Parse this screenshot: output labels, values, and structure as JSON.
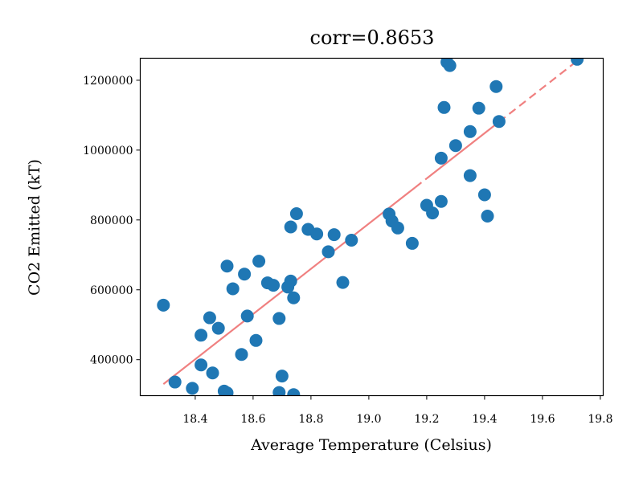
{
  "chart_data": {
    "type": "scatter",
    "title": "corr=0.8653",
    "xlabel": "Average Temperature (Celsius)",
    "ylabel": "CO2 Emitted (kT)",
    "xlim": [
      18.21,
      19.81
    ],
    "ylim": [
      297000,
      1263000
    ],
    "xticks": [
      18.4,
      18.6,
      18.8,
      19.0,
      19.2,
      19.4,
      19.6,
      19.8
    ],
    "xtick_labels": [
      "18.4",
      "18.6",
      "18.8",
      "19.0",
      "19.2",
      "19.4",
      "19.6",
      "19.8"
    ],
    "yticks": [
      400000,
      600000,
      800000,
      1000000,
      1200000
    ],
    "ytick_labels": [
      "400000",
      "600000",
      "800000",
      "1000000",
      "1200000"
    ],
    "grid": false,
    "marker_color": "#1f77b4",
    "trend_color": "#f08080",
    "trendline": {
      "x": [
        18.29,
        19.73
      ],
      "y": [
        330000,
        1262000
      ]
    },
    "points": [
      {
        "x": 18.29,
        "y": 556000
      },
      {
        "x": 18.33,
        "y": 336000
      },
      {
        "x": 18.39,
        "y": 318000
      },
      {
        "x": 18.42,
        "y": 470000
      },
      {
        "x": 18.42,
        "y": 385000
      },
      {
        "x": 18.45,
        "y": 520000
      },
      {
        "x": 18.46,
        "y": 362000
      },
      {
        "x": 18.48,
        "y": 490000
      },
      {
        "x": 18.5,
        "y": 310000
      },
      {
        "x": 18.51,
        "y": 305000
      },
      {
        "x": 18.51,
        "y": 668000
      },
      {
        "x": 18.53,
        "y": 603000
      },
      {
        "x": 18.56,
        "y": 415000
      },
      {
        "x": 18.57,
        "y": 645000
      },
      {
        "x": 18.58,
        "y": 525000
      },
      {
        "x": 18.61,
        "y": 455000
      },
      {
        "x": 18.62,
        "y": 682000
      },
      {
        "x": 18.65,
        "y": 620000
      },
      {
        "x": 18.67,
        "y": 613000
      },
      {
        "x": 18.69,
        "y": 518000
      },
      {
        "x": 18.69,
        "y": 306000
      },
      {
        "x": 18.7,
        "y": 353000
      },
      {
        "x": 18.72,
        "y": 608000
      },
      {
        "x": 18.73,
        "y": 625000
      },
      {
        "x": 18.73,
        "y": 780000
      },
      {
        "x": 18.74,
        "y": 300000
      },
      {
        "x": 18.74,
        "y": 577000
      },
      {
        "x": 18.75,
        "y": 818000
      },
      {
        "x": 18.79,
        "y": 773000
      },
      {
        "x": 18.82,
        "y": 760000
      },
      {
        "x": 18.86,
        "y": 709000
      },
      {
        "x": 18.88,
        "y": 758000
      },
      {
        "x": 18.91,
        "y": 621000
      },
      {
        "x": 18.94,
        "y": 742000
      },
      {
        "x": 19.07,
        "y": 817000
      },
      {
        "x": 19.08,
        "y": 797000
      },
      {
        "x": 19.1,
        "y": 777000
      },
      {
        "x": 19.15,
        "y": 733000
      },
      {
        "x": 19.2,
        "y": 842000
      },
      {
        "x": 19.22,
        "y": 820000
      },
      {
        "x": 19.25,
        "y": 853000
      },
      {
        "x": 19.25,
        "y": 977000
      },
      {
        "x": 19.26,
        "y": 1122000
      },
      {
        "x": 19.27,
        "y": 1252000
      },
      {
        "x": 19.28,
        "y": 1242000
      },
      {
        "x": 19.3,
        "y": 1013000
      },
      {
        "x": 19.35,
        "y": 1053000
      },
      {
        "x": 19.35,
        "y": 927000
      },
      {
        "x": 19.38,
        "y": 1120000
      },
      {
        "x": 19.4,
        "y": 872000
      },
      {
        "x": 19.41,
        "y": 811000
      },
      {
        "x": 19.44,
        "y": 1182000
      },
      {
        "x": 19.45,
        "y": 1082000
      },
      {
        "x": 19.72,
        "y": 1260000
      }
    ]
  }
}
